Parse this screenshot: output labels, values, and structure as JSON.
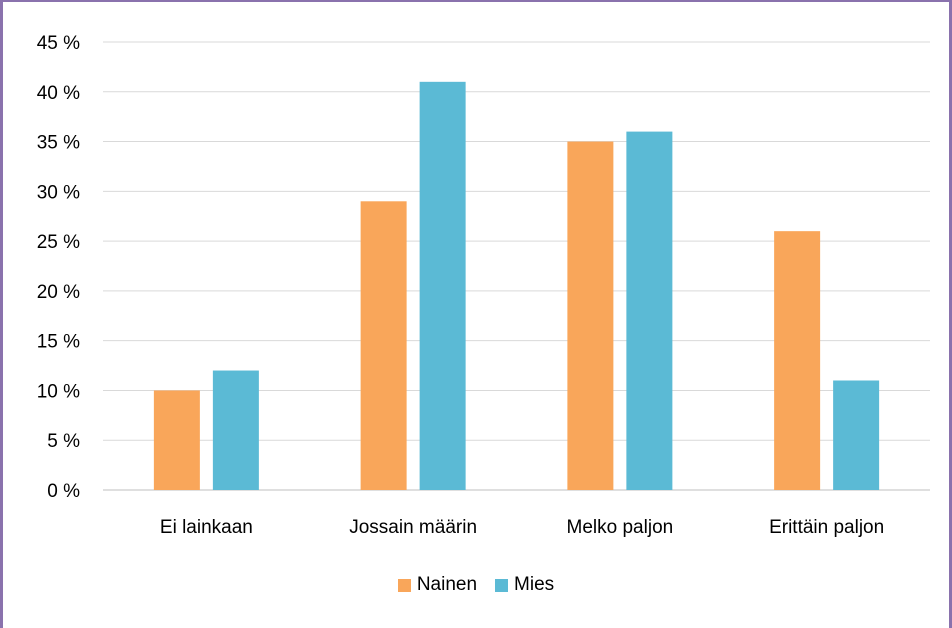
{
  "chart_data": {
    "type": "bar",
    "categories": [
      "Ei lainkaan",
      "Jossain määrin",
      "Melko paljon",
      "Erittäin paljon"
    ],
    "series": [
      {
        "name": "Nainen",
        "values": [
          10,
          29,
          35,
          26
        ],
        "color": "#f9a65a"
      },
      {
        "name": "Mies",
        "values": [
          12,
          41,
          36,
          11
        ],
        "color": "#5bbad5"
      }
    ],
    "ylim": [
      0,
      45
    ],
    "yticks": [
      0,
      5,
      10,
      15,
      20,
      25,
      30,
      35,
      40,
      45
    ],
    "ytick_suffix": " %",
    "grid": true,
    "legend_position": "bottom"
  }
}
